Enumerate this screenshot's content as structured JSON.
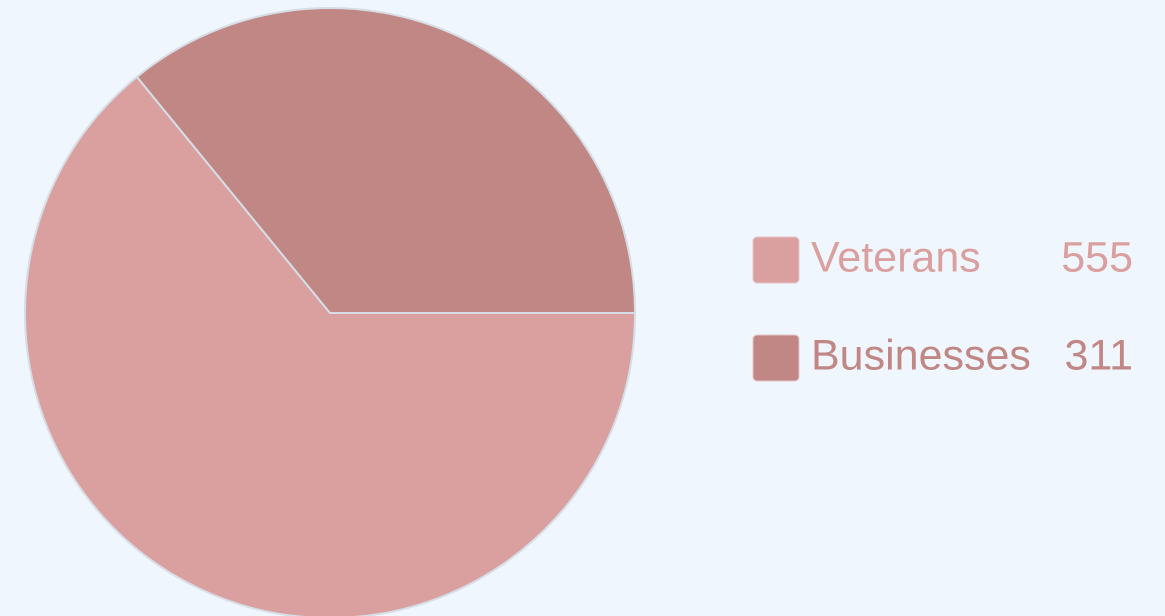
{
  "chart_data": {
    "type": "pie",
    "categories": [
      "Veterans",
      "Businesses"
    ],
    "values": [
      555,
      311
    ],
    "colors": [
      "#daa09f",
      "#c08785"
    ],
    "legend": "right"
  }
}
